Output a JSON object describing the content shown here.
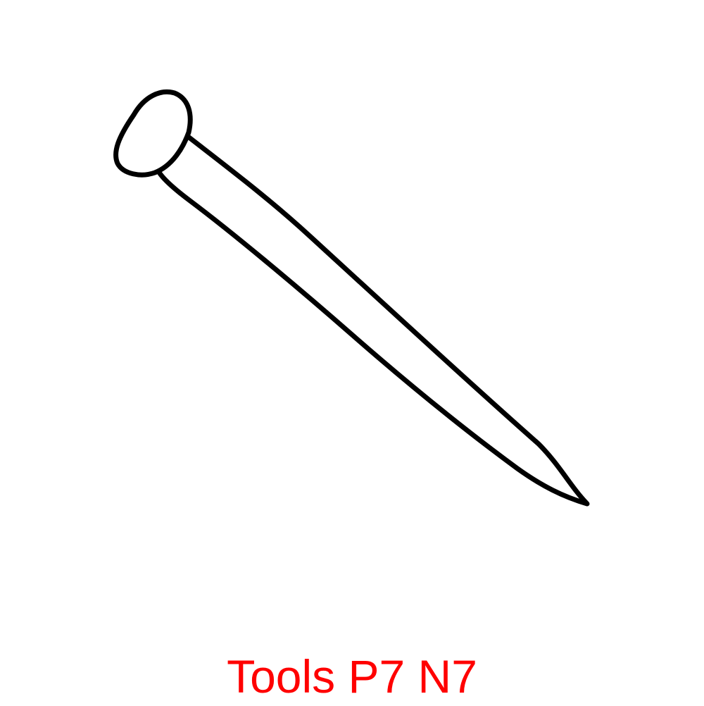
{
  "illustration": {
    "subject": "nail-icon",
    "stroke_color": "#000000",
    "fill_color": "#ffffff"
  },
  "caption": {
    "text": "Tools P7 N7",
    "color": "#ff0000"
  }
}
